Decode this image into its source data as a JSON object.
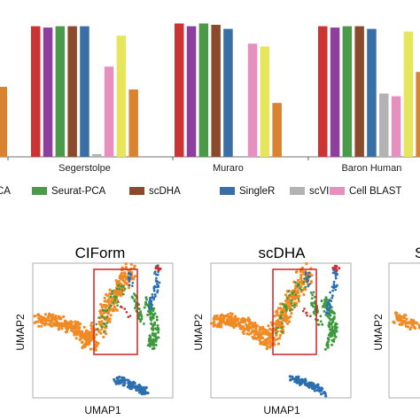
{
  "chart_data": [
    {
      "type": "bar",
      "categories": [
        "Segerstolpe",
        "Muraro",
        "Baron Human"
      ],
      "series": [
        {
          "name": "",
          "color": "#cc3333",
          "values": [
            0.97,
            0.99,
            0.97
          ]
        },
        {
          "name": "",
          "color": "#8e3f9e",
          "values": [
            0.96,
            0.97,
            0.96
          ]
        },
        {
          "name": "Seurat-PCA",
          "color": "#4a9a4a",
          "values": [
            0.97,
            0.99,
            0.97
          ]
        },
        {
          "name": "scDHA",
          "color": "#8b4a2b",
          "values": [
            0.97,
            0.98,
            0.97
          ]
        },
        {
          "name": "SingleR",
          "color": "#3a6fa5",
          "values": [
            0.97,
            0.95,
            0.95
          ]
        },
        {
          "name": "scVI",
          "color": "#b3b3b3",
          "values": [
            0.02,
            0.0,
            0.47
          ]
        },
        {
          "name": "Cell BLAST",
          "color": "#e690c0",
          "values": [
            0.67,
            0.84,
            0.45
          ]
        },
        {
          "name": "",
          "color": "#e6e65c",
          "values": [
            0.9,
            0.82,
            0.93
          ]
        },
        {
          "name": "",
          "color": "#d98230",
          "values": [
            0.5,
            0.4,
            0.63
          ]
        }
      ],
      "left_partial_bar": {
        "color": "#d98230",
        "value": 0.52
      },
      "ylim": [
        0,
        1
      ]
    },
    {
      "type": "scatter",
      "panels": [
        {
          "title": "CIForm",
          "xlabel": "UMAP1",
          "ylabel": "UMAP2"
        },
        {
          "title": "scDHA",
          "xlabel": "UMAP1",
          "ylabel": "UMAP2"
        },
        {
          "title": "S",
          "xlabel": "",
          "ylabel": "UMAP2"
        }
      ],
      "clusters": [
        {
          "name": "orange",
          "color": "#f08a24"
        },
        {
          "name": "green",
          "color": "#3c9a3c"
        },
        {
          "name": "blue",
          "color": "#2c6fb0"
        },
        {
          "name": "red",
          "color": "#cc2f2f"
        }
      ],
      "highlight_color": "#d22222"
    }
  ],
  "legend": {
    "partial_label": "CA",
    "items": [
      {
        "label": "Seurat-PCA",
        "color": "#4a9a4a"
      },
      {
        "label": "scDHA",
        "color": "#8b4a2b"
      },
      {
        "label": "SingleR",
        "color": "#3a6fa5"
      },
      {
        "label": "scVI",
        "color": "#b3b3b3"
      },
      {
        "label": "Cell BLAST",
        "color": "#e690c0"
      }
    ]
  }
}
